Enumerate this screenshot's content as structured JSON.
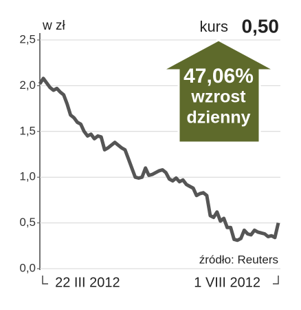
{
  "chart_data": {
    "type": "line",
    "unit_label": "w zł",
    "price_label": "kurs",
    "price_value": "0,50",
    "change_text": "47,06%",
    "change_line1": "wzrost",
    "change_line2": "dzienny",
    "source": "źródło: Reuters",
    "categories": [
      null,
      null,
      null,
      null,
      null,
      null,
      null,
      null,
      null,
      null,
      null,
      null,
      null,
      null,
      "22 III 2012",
      null,
      null,
      null,
      null,
      null,
      null,
      null,
      null,
      null,
      null,
      null,
      null,
      null,
      null,
      null,
      null,
      null,
      null,
      null,
      null,
      null,
      null,
      null,
      null,
      null,
      null,
      null,
      null,
      null,
      null,
      null,
      null,
      null,
      null,
      null,
      null,
      null,
      null,
      null,
      null,
      "1 VIII 2012",
      null,
      null,
      null,
      null,
      null,
      null,
      null,
      null,
      null,
      null,
      null,
      null,
      null,
      null,
      null
    ],
    "values": [
      2.02,
      2.08,
      2.03,
      1.98,
      1.95,
      1.97,
      1.93,
      1.9,
      1.8,
      1.68,
      1.65,
      1.6,
      1.58,
      1.5,
      1.45,
      1.47,
      1.42,
      1.45,
      1.44,
      1.3,
      1.32,
      1.35,
      1.38,
      1.35,
      1.32,
      1.3,
      1.2,
      1.1,
      1.0,
      0.99,
      1.0,
      1.1,
      1.02,
      1.03,
      1.05,
      1.07,
      1.08,
      1.05,
      0.98,
      0.96,
      0.99,
      0.95,
      0.97,
      0.92,
      0.9,
      0.88,
      0.8,
      0.82,
      0.83,
      0.8,
      0.58,
      0.56,
      0.62,
      0.52,
      0.55,
      0.45,
      0.45,
      0.32,
      0.31,
      0.33,
      0.42,
      0.38,
      0.37,
      0.42,
      0.4,
      0.39,
      0.38,
      0.35,
      0.36,
      0.34,
      0.5
    ],
    "color": "#555555",
    "arrow_color": "#5e6a2b",
    "ylim": [
      0,
      2.5
    ],
    "yticks": [
      {
        "value": 0,
        "label": "0,0"
      },
      {
        "value": 0.5,
        "label": "0,5"
      },
      {
        "value": 1,
        "label": "1,0"
      },
      {
        "value": 1.5,
        "label": "1,5"
      },
      {
        "value": 2,
        "label": "2,0"
      },
      {
        "value": 2.5,
        "label": "2,5"
      }
    ],
    "grid": true
  }
}
